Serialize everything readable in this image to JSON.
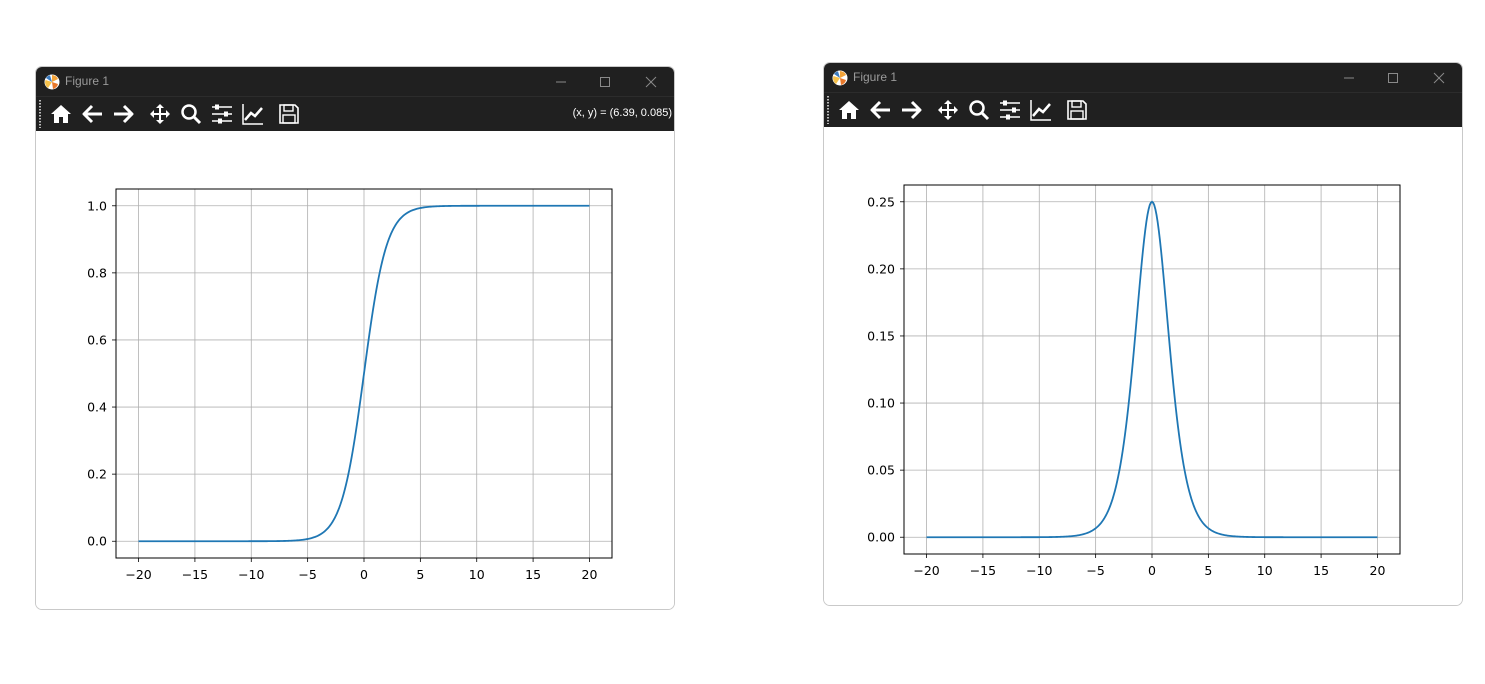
{
  "windows": [
    {
      "title": "Figure 1",
      "coordinate_readout": "(x, y) = (6.39, 0.085)",
      "toolbar": [
        "home-icon",
        "back-arrow-icon",
        "forward-arrow-icon",
        "pan-icon",
        "zoom-icon",
        "subplots-config-icon",
        "axes-edit-icon",
        "save-icon"
      ]
    },
    {
      "title": "Figure 1",
      "coordinate_readout": "",
      "toolbar": [
        "home-icon",
        "back-arrow-icon",
        "forward-arrow-icon",
        "pan-icon",
        "zoom-icon",
        "subplots-config-icon",
        "axes-edit-icon",
        "save-icon"
      ]
    }
  ],
  "colors": {
    "line": "#1f77b4",
    "grid": "#b0b0b0",
    "titlebar": "#202020"
  },
  "chart_data": [
    {
      "type": "line",
      "function": "sigmoid",
      "x_range": [
        -20,
        20
      ],
      "xlim": [
        -22,
        22
      ],
      "ylim": [
        -0.05,
        1.05
      ],
      "x_ticks": [
        -20,
        -15,
        -10,
        -5,
        0,
        5,
        10,
        15,
        20
      ],
      "x_tick_labels": [
        "−20",
        "−15",
        "−10",
        "−5",
        "0",
        "5",
        "10",
        "15",
        "20"
      ],
      "y_ticks": [
        0.0,
        0.2,
        0.4,
        0.6,
        0.8,
        1.0
      ],
      "y_tick_labels": [
        "0.0",
        "0.2",
        "0.4",
        "0.6",
        "0.8",
        "1.0"
      ],
      "sample_points": {
        "x": [
          -20,
          -10,
          -5,
          -2,
          0,
          2,
          5,
          10,
          20
        ],
        "y": [
          0.0,
          0.0,
          0.007,
          0.119,
          0.5,
          0.881,
          0.993,
          1.0,
          1.0
        ]
      },
      "grid": true
    },
    {
      "type": "line",
      "function": "sigmoid_derivative",
      "x_range": [
        -20,
        20
      ],
      "xlim": [
        -22,
        22
      ],
      "ylim": [
        -0.0125,
        0.2625
      ],
      "x_ticks": [
        -20,
        -15,
        -10,
        -5,
        0,
        5,
        10,
        15,
        20
      ],
      "x_tick_labels": [
        "−20",
        "−15",
        "−10",
        "−5",
        "0",
        "5",
        "10",
        "15",
        "20"
      ],
      "y_ticks": [
        0.0,
        0.05,
        0.1,
        0.15,
        0.2,
        0.25
      ],
      "y_tick_labels": [
        "0.00",
        "0.05",
        "0.10",
        "0.15",
        "0.20",
        "0.25"
      ],
      "sample_points": {
        "x": [
          -20,
          -10,
          -5,
          -2,
          0,
          2,
          5,
          10,
          20
        ],
        "y": [
          0.0,
          0.0,
          0.0066,
          0.105,
          0.25,
          0.105,
          0.0066,
          0.0,
          0.0
        ]
      },
      "grid": true
    }
  ]
}
